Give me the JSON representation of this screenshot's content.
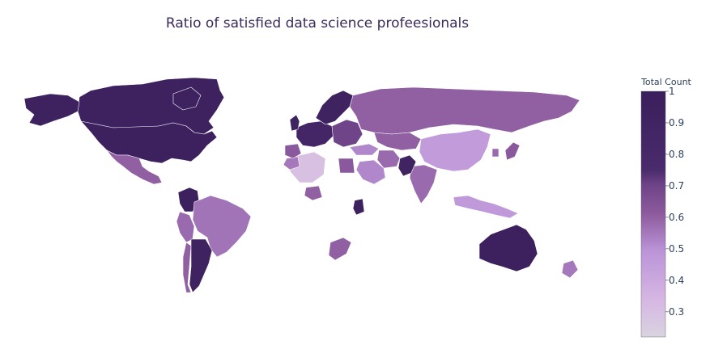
{
  "chart_data": {
    "type": "choropleth",
    "title": "Ratio of satisfied data science profeesionals",
    "colorbar": {
      "title": "Total Count",
      "range": [
        0.22,
        1.0
      ],
      "ticks": [
        "0.3",
        "0.4",
        "0.5",
        "0.6",
        "0.7",
        "0.8",
        "0.9",
        "1"
      ],
      "colorscale": [
        [
          0.0,
          "#d9d3e0"
        ],
        [
          0.15,
          "#d6b7e3"
        ],
        [
          0.35,
          "#bb94d8"
        ],
        [
          0.5,
          "#8d5b9e"
        ],
        [
          0.62,
          "#6e4387"
        ],
        [
          0.68,
          "#4a2b6c"
        ],
        [
          1.0,
          "#3a1f5c"
        ]
      ]
    },
    "regions": [
      {
        "name": "Canada",
        "value": 0.94
      },
      {
        "name": "United States",
        "value": 0.95
      },
      {
        "name": "Alaska",
        "value": 0.94
      },
      {
        "name": "Greenland",
        "value": null
      },
      {
        "name": "Mexico",
        "value": 0.6
      },
      {
        "name": "Colombia",
        "value": 0.95
      },
      {
        "name": "Brazil",
        "value": 0.56
      },
      {
        "name": "Peru",
        "value": 0.58
      },
      {
        "name": "Chile",
        "value": 0.6
      },
      {
        "name": "Argentina",
        "value": 0.92
      },
      {
        "name": "Russia",
        "value": 0.6
      },
      {
        "name": "China",
        "value": 0.46
      },
      {
        "name": "India",
        "value": 0.58
      },
      {
        "name": "Kazakhstan",
        "value": 0.6
      },
      {
        "name": "Iran",
        "value": 0.58
      },
      {
        "name": "Pakistan",
        "value": 0.9
      },
      {
        "name": "Saudi Arabia",
        "value": 0.52
      },
      {
        "name": "Egypt",
        "value": 0.62
      },
      {
        "name": "Algeria",
        "value": 0.3
      },
      {
        "name": "Morocco",
        "value": 0.55
      },
      {
        "name": "Nigeria",
        "value": 0.6
      },
      {
        "name": "Kenya",
        "value": 0.96
      },
      {
        "name": "South Africa",
        "value": 0.6
      },
      {
        "name": "Europe West",
        "value": 0.85
      },
      {
        "name": "Europe East",
        "value": 0.7
      },
      {
        "name": "Scandinavia",
        "value": 0.92
      },
      {
        "name": "United Kingdom",
        "value": 0.9
      },
      {
        "name": "Spain",
        "value": 0.62
      },
      {
        "name": "Turkey",
        "value": 0.52
      },
      {
        "name": "Japan",
        "value": 0.62
      },
      {
        "name": "South Korea",
        "value": 0.58
      },
      {
        "name": "Indonesia",
        "value": 0.47
      },
      {
        "name": "Australia",
        "value": 0.95
      },
      {
        "name": "New Zealand",
        "value": 0.55
      }
    ]
  }
}
